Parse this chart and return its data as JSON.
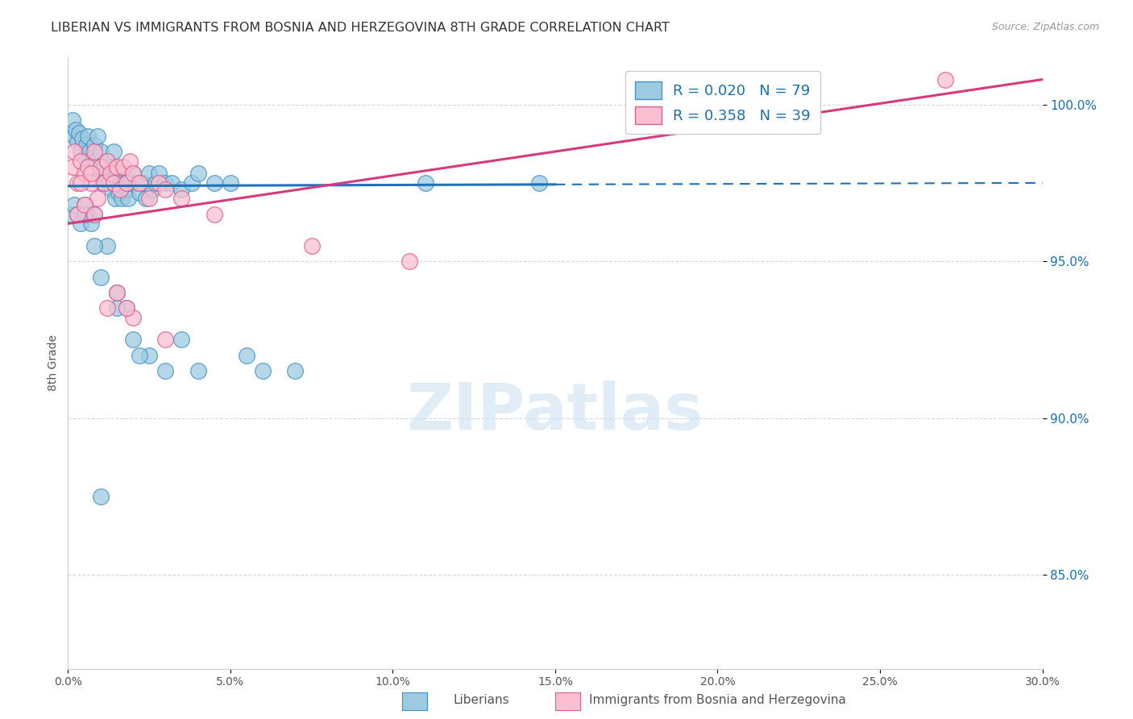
{
  "title": "LIBERIAN VS IMMIGRANTS FROM BOSNIA AND HERZEGOVINA 8TH GRADE CORRELATION CHART",
  "source": "Source: ZipAtlas.com",
  "ylabel": "8th Grade",
  "xlim": [
    0.0,
    30.0
  ],
  "ylim": [
    82.0,
    101.5
  ],
  "y_ticks": [
    85.0,
    90.0,
    95.0,
    100.0
  ],
  "x_ticks": [
    0.0,
    5.0,
    10.0,
    15.0,
    20.0,
    25.0,
    30.0
  ],
  "legend_R1": "R = 0.020",
  "legend_N1": "N = 79",
  "legend_R2": "R = 0.358",
  "legend_N2": "N = 39",
  "blue_color": "#9ecae1",
  "pink_color": "#fcbfd2",
  "blue_edge_color": "#4292c6",
  "pink_edge_color": "#e05c8a",
  "blue_line_color": "#2171b5",
  "pink_line_color": "#d63a7a",
  "legend_text_color": "#1a6faf",
  "watermark_color": "#c8dff0",
  "blue_line_y0": 97.4,
  "blue_line_y1": 97.5,
  "blue_solid_end_x": 15.0,
  "pink_line_y0": 96.2,
  "pink_line_y1": 100.8,
  "blue_scatter_x": [
    0.15,
    0.2,
    0.25,
    0.3,
    0.35,
    0.4,
    0.45,
    0.5,
    0.55,
    0.6,
    0.65,
    0.7,
    0.75,
    0.8,
    0.85,
    0.9,
    0.95,
    1.0,
    1.05,
    1.1,
    1.15,
    1.2,
    1.25,
    1.3,
    1.35,
    1.4,
    1.45,
    1.5,
    1.55,
    1.6,
    1.65,
    1.7,
    1.75,
    1.8,
    1.85,
    1.9,
    2.0,
    2.1,
    2.2,
    2.3,
    2.4,
    2.5,
    2.6,
    2.7,
    2.8,
    3.0,
    3.2,
    3.5,
    3.8,
    4.0,
    4.5,
    5.0,
    0.1,
    0.2,
    0.3,
    0.4,
    0.5,
    0.6,
    0.7,
    0.8,
    1.0,
    1.2,
    1.5,
    1.8,
    2.0,
    2.5,
    3.0,
    4.0,
    5.5,
    7.0,
    1.0,
    0.5,
    0.8,
    1.5,
    2.2,
    3.5,
    6.0,
    11.0,
    14.5
  ],
  "blue_scatter_y": [
    99.5,
    99.0,
    99.2,
    98.8,
    99.1,
    98.5,
    98.9,
    98.3,
    98.7,
    99.0,
    98.5,
    98.0,
    98.3,
    98.7,
    98.2,
    99.0,
    97.8,
    98.5,
    97.5,
    98.0,
    97.8,
    98.2,
    97.5,
    98.0,
    97.3,
    98.5,
    97.0,
    97.8,
    97.2,
    97.5,
    97.0,
    97.8,
    97.5,
    97.3,
    97.0,
    97.5,
    97.8,
    97.5,
    97.2,
    97.5,
    97.0,
    97.8,
    97.3,
    97.5,
    97.8,
    97.5,
    97.5,
    97.3,
    97.5,
    97.8,
    97.5,
    97.5,
    96.5,
    96.8,
    96.5,
    96.2,
    96.8,
    96.5,
    96.2,
    96.5,
    94.5,
    95.5,
    94.0,
    93.5,
    92.5,
    92.0,
    91.5,
    91.5,
    92.0,
    91.5,
    87.5,
    96.5,
    95.5,
    93.5,
    92.0,
    92.5,
    91.5,
    97.5,
    97.5
  ],
  "pink_scatter_x": [
    0.15,
    0.2,
    0.3,
    0.4,
    0.5,
    0.6,
    0.7,
    0.8,
    0.9,
    1.0,
    1.1,
    1.2,
    1.3,
    1.4,
    1.5,
    1.6,
    1.7,
    1.8,
    1.9,
    2.0,
    2.2,
    2.5,
    2.8,
    3.0,
    3.5,
    0.3,
    0.5,
    0.8,
    1.2,
    1.5,
    2.0,
    3.0,
    4.5,
    7.5,
    10.5,
    27.0,
    0.4,
    0.7,
    1.8
  ],
  "pink_scatter_y": [
    98.0,
    98.5,
    97.5,
    98.2,
    97.8,
    98.0,
    97.5,
    98.5,
    97.0,
    98.0,
    97.5,
    98.2,
    97.8,
    97.5,
    98.0,
    97.3,
    98.0,
    97.5,
    98.2,
    97.8,
    97.5,
    97.0,
    97.5,
    97.3,
    97.0,
    96.5,
    96.8,
    96.5,
    93.5,
    94.0,
    93.2,
    92.5,
    96.5,
    95.5,
    95.0,
    100.8,
    97.5,
    97.8,
    93.5
  ]
}
